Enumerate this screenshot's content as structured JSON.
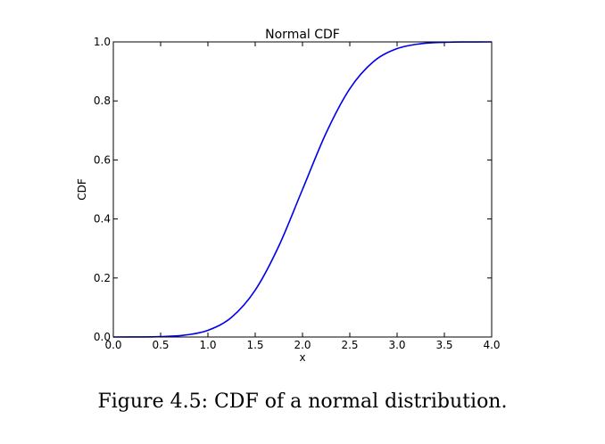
{
  "caption": "Figure 4.5: CDF of a normal distribution.",
  "chart_data": {
    "type": "line",
    "title": "Normal CDF",
    "xlabel": "x",
    "ylabel": "CDF",
    "xlim": [
      0.0,
      4.0
    ],
    "ylim": [
      0.0,
      1.0
    ],
    "xticks": [
      "0.0",
      "0.5",
      "1.0",
      "1.5",
      "2.0",
      "2.5",
      "3.0",
      "3.5",
      "4.0"
    ],
    "yticks": [
      "0.0",
      "0.2",
      "0.4",
      "0.6",
      "0.8",
      "1.0"
    ],
    "grid": false,
    "legend": "none",
    "series": [
      {
        "color": "#0000ee",
        "x": [
          0.0,
          0.25,
          0.5,
          0.75,
          1.0,
          1.25,
          1.5,
          1.75,
          2.0,
          2.25,
          2.5,
          2.75,
          3.0,
          3.25,
          3.5,
          3.75,
          4.0
        ],
        "y": [
          3e-05,
          0.0002,
          0.0013,
          0.0062,
          0.0228,
          0.0668,
          0.1587,
          0.3085,
          0.5,
          0.6915,
          0.8413,
          0.9332,
          0.9772,
          0.9938,
          0.9987,
          0.9998,
          1.0
        ]
      }
    ]
  }
}
